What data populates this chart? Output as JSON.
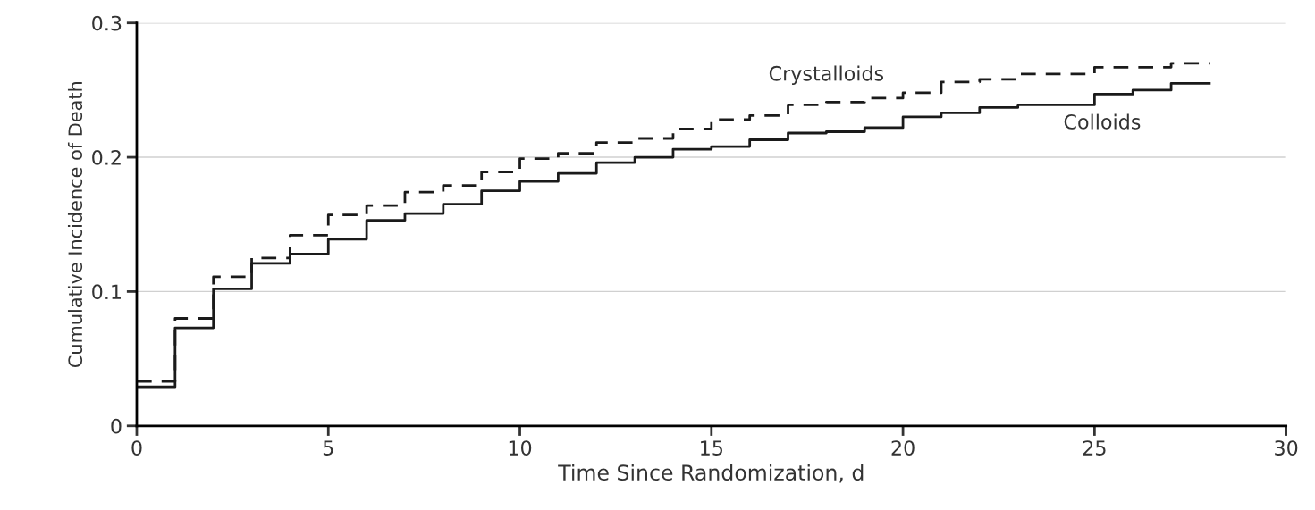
{
  "chart_data": {
    "type": "step",
    "xlabel": "Time Since Randomization, d",
    "ylabel": "Cumulative Incidence of Death",
    "x": [
      0,
      1,
      2,
      3,
      4,
      5,
      6,
      7,
      8,
      9,
      10,
      11,
      12,
      13,
      14,
      15,
      16,
      17,
      18,
      19,
      20,
      21,
      22,
      23,
      24,
      25,
      26,
      27,
      28
    ],
    "series": [
      {
        "name": "Crystalloids",
        "color": "#1a1a1a",
        "line_style": "dashed",
        "values": [
          0.033,
          0.08,
          0.111,
          0.125,
          0.142,
          0.157,
          0.164,
          0.174,
          0.179,
          0.189,
          0.199,
          0.203,
          0.211,
          0.214,
          0.221,
          0.228,
          0.231,
          0.239,
          0.241,
          0.244,
          0.248,
          0.256,
          0.258,
          0.262,
          0.262,
          0.267,
          0.267,
          0.27,
          0.27
        ]
      },
      {
        "name": "Colloids",
        "color": "#1a1a1a",
        "line_style": "solid",
        "values": [
          0.029,
          0.073,
          0.102,
          0.121,
          0.128,
          0.139,
          0.153,
          0.158,
          0.165,
          0.175,
          0.182,
          0.188,
          0.196,
          0.2,
          0.206,
          0.208,
          0.213,
          0.218,
          0.219,
          0.222,
          0.23,
          0.233,
          0.237,
          0.239,
          0.239,
          0.247,
          0.25,
          0.255,
          0.255
        ]
      }
    ],
    "xlim": [
      0,
      30
    ],
    "xticks": [
      0,
      5,
      10,
      15,
      20,
      25,
      30
    ],
    "ylim": [
      0,
      0.3
    ],
    "yticks": [
      0,
      0.1,
      0.2,
      0.3
    ],
    "grid": "y",
    "legend": false
  }
}
